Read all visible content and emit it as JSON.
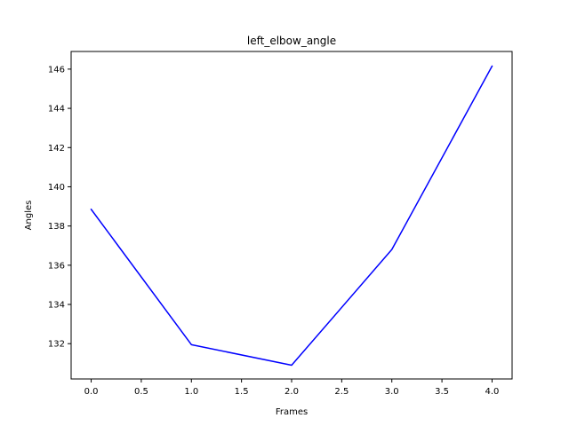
{
  "chart_data": {
    "type": "line",
    "title": "left_elbow_angle",
    "xlabel": "Frames",
    "ylabel": "Angles",
    "xlim": [
      -0.2,
      4.2
    ],
    "ylim": [
      130.2,
      146.9
    ],
    "x_ticks": [
      0.0,
      0.5,
      1.0,
      1.5,
      2.0,
      2.5,
      3.0,
      3.5,
      4.0
    ],
    "x_tick_labels": [
      "0.0",
      "0.5",
      "1.0",
      "1.5",
      "2.0",
      "2.5",
      "3.0",
      "3.5",
      "4.0"
    ],
    "y_ticks": [
      132,
      134,
      136,
      138,
      140,
      142,
      144,
      146
    ],
    "y_tick_labels": [
      "132",
      "134",
      "136",
      "138",
      "140",
      "142",
      "144",
      "146"
    ],
    "grid": false,
    "series": [
      {
        "color": "#0000ff",
        "x": [
          0,
          1,
          2,
          3,
          4
        ],
        "y": [
          138.85,
          131.95,
          130.9,
          136.8,
          146.15
        ]
      }
    ]
  }
}
